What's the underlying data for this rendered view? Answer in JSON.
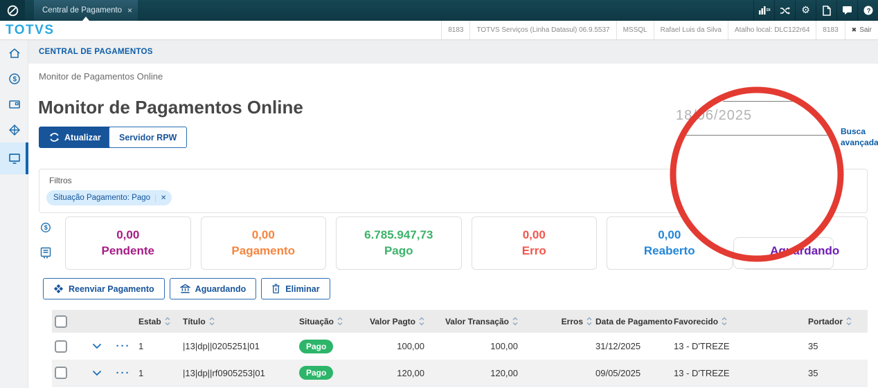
{
  "topbar": {
    "tab": {
      "title": "Central de Pagamento",
      "close": "×"
    },
    "icons": [
      {
        "name": "analytics",
        "label": "DI"
      },
      {
        "name": "shuffle"
      },
      {
        "name": "settings",
        "glyph": "⚙"
      },
      {
        "name": "document"
      },
      {
        "name": "chat"
      },
      {
        "name": "help"
      }
    ]
  },
  "header": {
    "logo": "TOTVS",
    "info_cells": [
      "8183",
      "TOTVS Serviços (Linha Datasul) 06.9.5537",
      "MSSQL",
      "Rafael Luis da Silva",
      "Atalho local: DLC122r64",
      "8183"
    ],
    "logout": "Sair"
  },
  "sidebar": {
    "items": [
      {
        "icon": "home",
        "active": false
      },
      {
        "icon": "dollar-circle",
        "active": false
      },
      {
        "icon": "wallet",
        "active": false
      },
      {
        "icon": "modules-diamond",
        "active": false
      },
      {
        "icon": "monitor",
        "active": true
      }
    ]
  },
  "breadcrumb": {
    "app": "CENTRAL DE PAGAMENTOS",
    "page": "Monitor de Pagamentos Online"
  },
  "page": {
    "title": "Monitor de Pagamentos Online",
    "refresh_button": "Atualizar",
    "rpw_button": "Servidor RPW",
    "date_value": "18/06/2025",
    "advanced_search_link": "Busca avançada",
    "filters": {
      "label": "Filtros",
      "chip": "Situação Pagamento: Pago",
      "chip_close": "✕"
    },
    "cards": [
      {
        "value": "0,00",
        "label": "Pendente",
        "color": "#a61c87"
      },
      {
        "value": "0,00",
        "label": "Pagamento",
        "color": "#f5853f"
      },
      {
        "value": "6.785.947,73",
        "label": "Pago",
        "color": "#3cb36a"
      },
      {
        "value": "0,00",
        "label": "Erro",
        "color": "#f2564d"
      },
      {
        "value": "0,00",
        "label": "Reaberto",
        "color": "#2386d8"
      },
      {
        "value": "",
        "label": "Aguardando",
        "color": "#6f1cb2"
      }
    ],
    "bulk_actions": [
      {
        "label": "Reenviar Pagamento",
        "icon": "diamond-send"
      },
      {
        "label": "Aguardando",
        "icon": "bank"
      },
      {
        "label": "Eliminar",
        "icon": "trash"
      }
    ],
    "table": {
      "columns": [
        "Estab",
        "Título",
        "Situação",
        "Valor Pagto",
        "Valor Transação",
        "Erros",
        "Data de Pagamento",
        "Favorecido",
        "Portador"
      ],
      "badge_color": "#2db56a",
      "rows": [
        {
          "estab": "1",
          "titulo": "|13|dp||0205251|01",
          "situacao": "Pago",
          "valor_pagto": "100,00",
          "valor_transacao": "100,00",
          "erros": "",
          "data_pagamento": "31/12/2025",
          "favorecido": "13 - D'TREZE",
          "portador": "35"
        },
        {
          "estab": "1",
          "titulo": "|13|dp||rf0905253|01",
          "situacao": "Pago",
          "valor_pagto": "120,00",
          "valor_transacao": "120,00",
          "erros": "",
          "data_pagamento": "09/05/2025",
          "favorecido": "13 - D'TREZE",
          "portador": "35"
        }
      ]
    },
    "annotation_color": "#e33b32"
  }
}
